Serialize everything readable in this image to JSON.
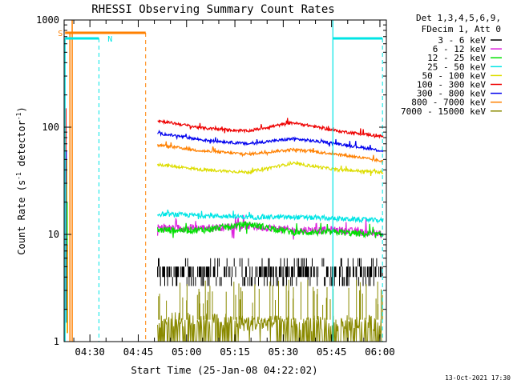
{
  "chart_data": {
    "type": "line",
    "title": "RHESSI Observing Summary Count Rates",
    "xlabel": "Start Time (25-Jan-08 04:22:02)",
    "ylabel_pre": "Count Rate (s",
    "ylabel_sup1": "-1",
    "ylabel_mid": " detector",
    "ylabel_sup2": "-1",
    "ylabel_post": ")",
    "ylog": true,
    "ylim": [
      1,
      1000
    ],
    "xlim_minutes": [
      262,
      362
    ],
    "xticks": [
      {
        "m": 270,
        "label": "04:30"
      },
      {
        "m": 285,
        "label": "04:45"
      },
      {
        "m": 300,
        "label": "05:00"
      },
      {
        "m": 315,
        "label": "05:15"
      },
      {
        "m": 330,
        "label": "05:30"
      },
      {
        "m": 345,
        "label": "05:45"
      },
      {
        "m": 360,
        "label": "06:00"
      }
    ],
    "yticks": [
      {
        "v": 1,
        "label": "1"
      },
      {
        "v": 10,
        "label": "10"
      },
      {
        "v": 100,
        "label": "100"
      },
      {
        "v": 1000,
        "label": "1000"
      }
    ],
    "legend_header": [
      "Det 1,3,4,5,6,9,",
      "FDecim 1, Att 0"
    ],
    "series": [
      {
        "name": "3 - 6 keV",
        "color": "#000000",
        "base": [
          5.0,
          4.9,
          4.7,
          4.5,
          4.5,
          4.4
        ],
        "jitter": 0.22,
        "bands": true
      },
      {
        "name": "6 - 12 keV",
        "color": "#dd22dd",
        "base": [
          11.5,
          11.5,
          12.0,
          11.0,
          11.0,
          10.0
        ],
        "jitter": 0.08
      },
      {
        "name": "12 - 25 keV",
        "color": "#00e000",
        "base": [
          11.0,
          11.0,
          12.5,
          10.5,
          10.5,
          9.8
        ],
        "jitter": 0.07
      },
      {
        "name": "25 - 50 keV",
        "color": "#00e5e5",
        "base": [
          15.5,
          15.0,
          14.5,
          14.5,
          14.0,
          13.5
        ],
        "jitter": 0.05
      },
      {
        "name": "50 - 100 keV",
        "color": "#dddd00",
        "base": [
          45,
          40,
          38,
          46,
          40,
          38
        ],
        "jitter": 0.03
      },
      {
        "name": "100 - 300 keV",
        "color": "#ee0000",
        "base": [
          115,
          98,
          92,
          110,
          92,
          82
        ],
        "jitter": 0.03
      },
      {
        "name": "300 - 800 keV",
        "color": "#0000ee",
        "base": [
          88,
          76,
          70,
          78,
          70,
          60
        ],
        "jitter": 0.03
      },
      {
        "name": "800 - 7000 keV",
        "color": "#ff8000",
        "base": [
          68,
          60,
          56,
          62,
          56,
          48
        ],
        "jitter": 0.03
      },
      {
        "name": "7000 - 15000 keV",
        "color": "#8a8a00",
        "base": [
          1.6,
          1.6,
          1.5,
          1.5,
          1.5,
          1.5
        ],
        "jitter": 0.0,
        "dropouts": true
      }
    ],
    "data_start_minute": 291,
    "data_end_minute": 361,
    "flags": [
      {
        "label": "S",
        "color": "#ff8000"
      },
      {
        "label": "N",
        "color": "#00e5e5"
      }
    ],
    "date_stamp": "13-Oct-2021 17:30"
  }
}
